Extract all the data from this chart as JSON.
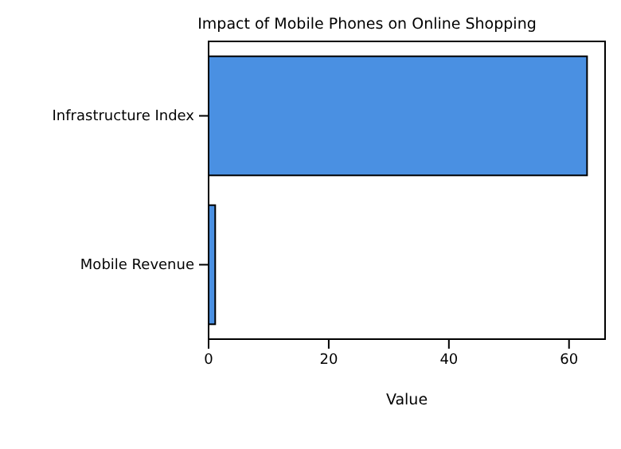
{
  "chart_data": {
    "type": "bar",
    "orientation": "horizontal",
    "title": "Impact of Mobile Phones on Online Shopping",
    "xlabel": "Value",
    "categories": [
      "Infrastructure Index",
      "Mobile Revenue"
    ],
    "series": [
      {
        "color": "#4a90e2",
        "values": [
          63,
          1.1
        ]
      }
    ],
    "xlim": [
      0,
      66
    ],
    "xticks": [
      0,
      20,
      40,
      60
    ],
    "grid": false
  }
}
